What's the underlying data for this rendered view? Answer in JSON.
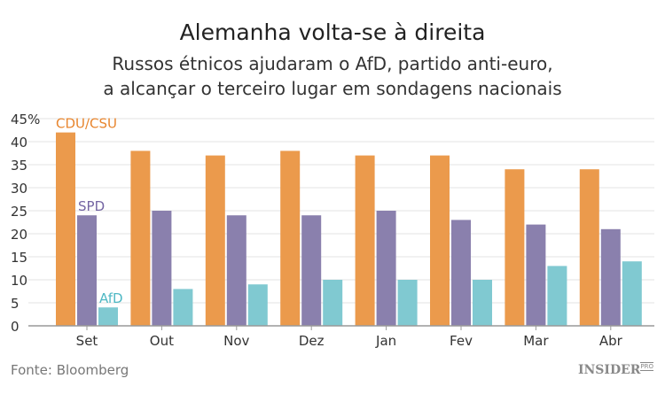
{
  "chart_data": {
    "type": "bar",
    "title": "Alemanha volta-se à direita",
    "subtitle_lines": [
      "Russos étnicos ajudaram o AfD, partido anti-euro,",
      "a alcançar o terceiro lugar em sondagens nacionais"
    ],
    "categories": [
      "Set",
      "Out",
      "Nov",
      "Dez",
      "Jan",
      "Fev",
      "Mar",
      "Abr"
    ],
    "series": [
      {
        "name": "CDU/CSU",
        "color": "#eb9a4c",
        "values": [
          42,
          38,
          37,
          38,
          37,
          37,
          34,
          34
        ]
      },
      {
        "name": "SPD",
        "color": "#8a80ad",
        "values": [
          24,
          25,
          24,
          24,
          25,
          23,
          22,
          21
        ]
      },
      {
        "name": "AfD",
        "color": "#80c9d1",
        "values": [
          4,
          8,
          9,
          10,
          10,
          10,
          13,
          14
        ]
      }
    ],
    "yticks": [
      "0",
      "5",
      "10",
      "15",
      "20",
      "25",
      "30",
      "35",
      "40",
      "45%"
    ],
    "ylim": [
      0,
      45
    ],
    "grid": true,
    "legend": "inline-labels-on-first-group"
  },
  "footer": {
    "source": "Fonte: Bloomberg",
    "logo": "INSIDER",
    "logo_suffix": "PRO"
  }
}
